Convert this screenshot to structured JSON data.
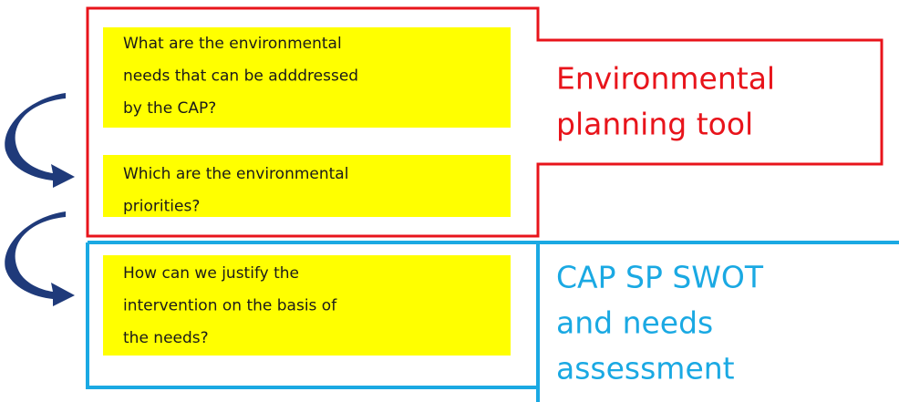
{
  "questions": [
    {
      "lines": [
        "What are the environmental",
        "needs that can be adddressed",
        "by the CAP?"
      ]
    },
    {
      "lines": [
        "Which are the environmental",
        "priorities?"
      ]
    },
    {
      "lines": [
        "How can we justify the",
        "intervention on the basis of",
        "the needs?"
      ]
    }
  ],
  "labels": [
    {
      "lines": [
        "Environmental",
        "planning tool"
      ]
    },
    {
      "lines": [
        "CAP SP SWOT",
        "and needs",
        "assessment"
      ]
    }
  ]
}
